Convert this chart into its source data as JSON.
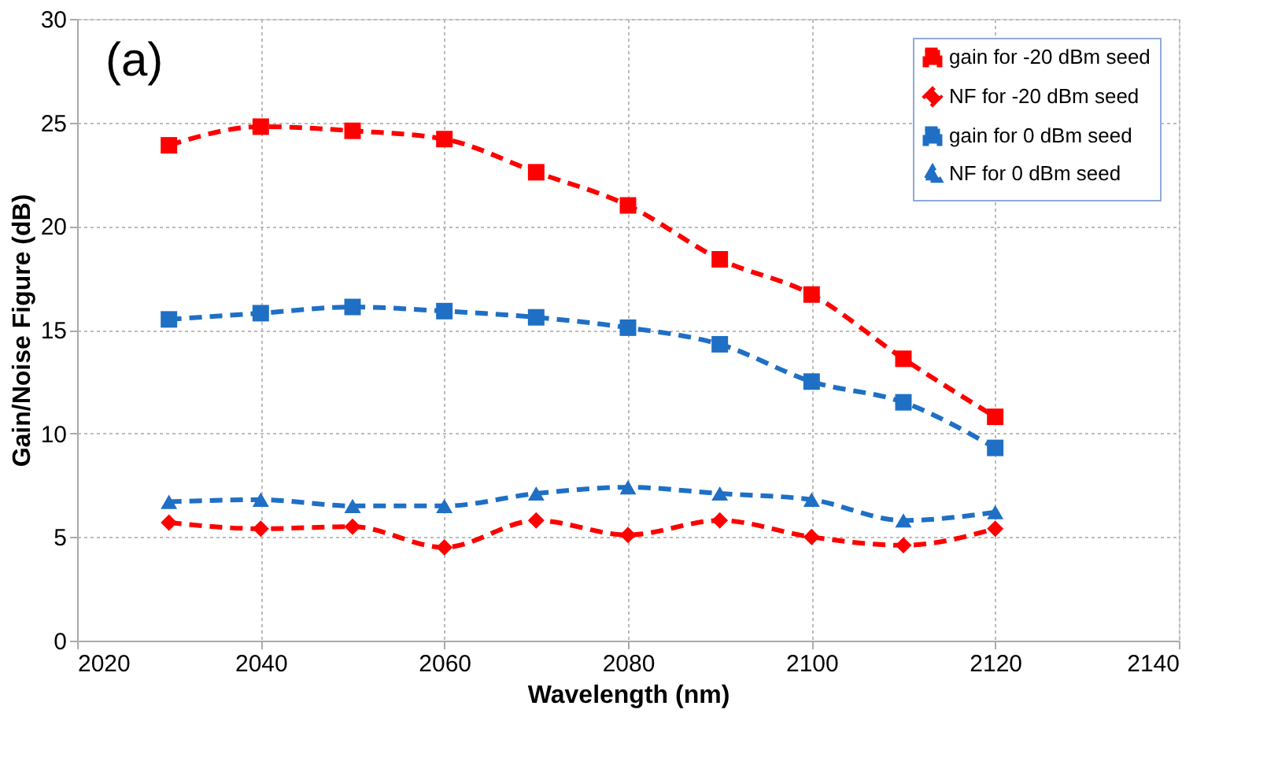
{
  "chart_data": {
    "type": "line",
    "xlabel": "Wavelength (nm)",
    "ylabel": "Gain/Noise Figure (dB)",
    "annotations": [
      "(a)"
    ],
    "x": [
      2030,
      2040,
      2050,
      2060,
      2070,
      2080,
      2090,
      2100,
      2110,
      2120
    ],
    "xlim": [
      2020,
      2140
    ],
    "xticks": [
      2020,
      2040,
      2060,
      2080,
      2100,
      2120,
      2140
    ],
    "ylim": [
      0,
      30
    ],
    "yticks": [
      0,
      5,
      10,
      15,
      20,
      25,
      30
    ],
    "grid": true,
    "legend": "top right",
    "line_style": "dashed",
    "series": [
      {
        "name": "gain for -20 dBm seed",
        "color": "#ff0000",
        "marker": "square",
        "values": [
          23.9,
          24.8,
          24.6,
          24.2,
          22.6,
          21.0,
          18.4,
          16.7,
          13.6,
          10.8
        ]
      },
      {
        "name": "NF for -20 dBm seed",
        "color": "#ff0000",
        "marker": "diamond",
        "values": [
          5.7,
          5.4,
          5.5,
          4.5,
          5.8,
          5.1,
          5.8,
          5.0,
          4.6,
          5.4
        ]
      },
      {
        "name": "gain for 0 dBm seed",
        "color": "#1f6fc5",
        "marker": "square",
        "values": [
          15.5,
          15.8,
          16.1,
          15.9,
          15.6,
          15.1,
          14.3,
          12.5,
          11.5,
          9.3
        ]
      },
      {
        "name": "NF for 0 dBm seed",
        "color": "#1f6fc5",
        "marker": "triangle",
        "values": [
          6.7,
          6.8,
          6.5,
          6.5,
          7.1,
          7.4,
          7.1,
          6.8,
          5.8,
          6.2
        ]
      }
    ]
  }
}
